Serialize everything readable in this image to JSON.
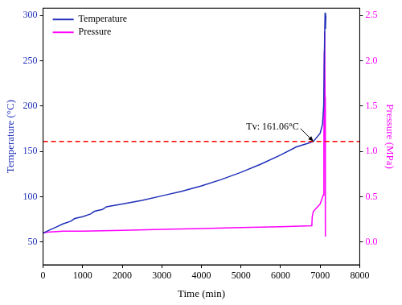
{
  "chart_data": {
    "type": "line",
    "x_label": "Time (min)",
    "y_label": "Temperature (°C)",
    "y2_label": "Pressure (MPa)",
    "xlim": [
      0,
      8000
    ],
    "xticks": [
      0,
      1000,
      2000,
      3000,
      4000,
      5000,
      6000,
      7000,
      8000
    ],
    "ylim": [
      25,
      308
    ],
    "yticks": [
      50,
      100,
      150,
      200,
      250,
      300
    ],
    "y2lim": [
      -0.25,
      2.58
    ],
    "y2ticks": [
      {
        "value": 0,
        "label": "0.0"
      },
      {
        "value": 0.5,
        "label": "0.5"
      },
      {
        "value": 1,
        "label": "1.0"
      },
      {
        "value": 1.5,
        "label": "1.5"
      },
      {
        "value": 2,
        "label": "2.0"
      },
      {
        "value": 2.5,
        "label": "2.5"
      }
    ],
    "grid": false,
    "legend": "upper left",
    "series": [
      {
        "name": "Temperature",
        "color": "#1f2fb8",
        "axis": "y",
        "x": [
          0,
          150,
          300,
          500,
          700,
          800,
          1000,
          1200,
          1300,
          1500,
          1600,
          2000,
          2500,
          3000,
          3500,
          4000,
          4500,
          5000,
          5500,
          6000,
          6400,
          6700,
          6830,
          7000,
          7060,
          7090,
          7110,
          7125,
          7135,
          7145
        ],
        "values": [
          60,
          63,
          66,
          70,
          73,
          76,
          78,
          81,
          84,
          86,
          89,
          92,
          96,
          101,
          106,
          112,
          119,
          127,
          136,
          146,
          155,
          159,
          161.06,
          170,
          180,
          200,
          265,
          303,
          285,
          300
        ]
      },
      {
        "name": "Pressure",
        "color": "#ff00ff",
        "axis": "y2",
        "x": [
          0,
          100,
          500,
          1000,
          2000,
          3000,
          4000,
          5000,
          6000,
          6790,
          6800,
          6830,
          7000,
          7080,
          7095,
          7105,
          7115,
          7125,
          7130,
          7135
        ],
        "values": [
          0.1,
          0.11,
          0.12,
          0.12,
          0.13,
          0.14,
          0.15,
          0.16,
          0.17,
          0.18,
          0.28,
          0.34,
          0.42,
          0.52,
          1.1,
          2.1,
          2.32,
          1.6,
          0.06,
          0.06
        ]
      }
    ],
    "reference_line": {
      "value": 161.06,
      "axis": "y",
      "color": "#ff0000",
      "line_style": "dashed"
    },
    "annotations": [
      {
        "text": "Tv: 161.06°C",
        "x": 6830,
        "y": 161.06
      }
    ]
  }
}
